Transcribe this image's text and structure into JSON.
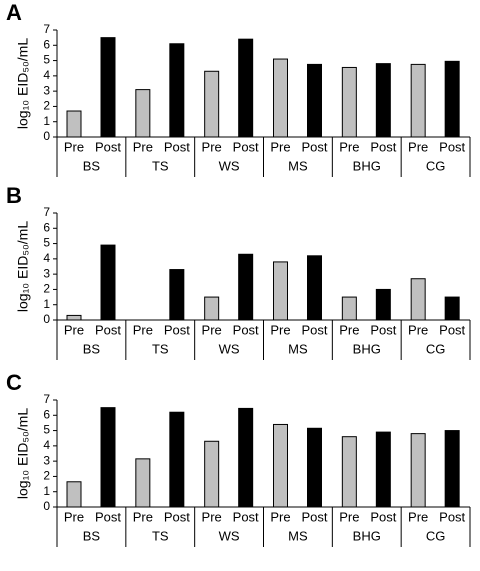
{
  "chart_data": [
    {
      "type": "bar",
      "panel": "A",
      "y_label": "log₁₀ EID₅₀/mL",
      "categories": [
        "BS",
        "TS",
        "WS",
        "MS",
        "BHG",
        "CG"
      ],
      "series": [
        {
          "name": "Pre",
          "color": "#c0c0c0",
          "values": [
            1.7,
            3.1,
            4.3,
            5.1,
            4.55,
            4.75
          ]
        },
        {
          "name": "Post",
          "color": "#000000",
          "values": [
            6.5,
            6.1,
            6.4,
            4.75,
            4.8,
            4.95
          ]
        }
      ],
      "ylim": [
        0,
        7
      ],
      "yticks": [
        0,
        1,
        2,
        3,
        4,
        5,
        6,
        7
      ],
      "grid": false
    },
    {
      "type": "bar",
      "panel": "B",
      "y_label": "log₁₀ EID₅₀/mL",
      "categories": [
        "BS",
        "TS",
        "WS",
        "MS",
        "BHG",
        "CG"
      ],
      "series": [
        {
          "name": "Pre",
          "color": "#c0c0c0",
          "values": [
            0.3,
            0,
            1.5,
            3.8,
            1.5,
            2.7
          ]
        },
        {
          "name": "Post",
          "color": "#000000",
          "values": [
            4.9,
            3.3,
            4.3,
            4.2,
            2.0,
            1.5
          ]
        }
      ],
      "ylim": [
        0,
        7
      ],
      "yticks": [
        0,
        1,
        2,
        3,
        4,
        5,
        6,
        7
      ],
      "grid": false
    },
    {
      "type": "bar",
      "panel": "C",
      "y_label": "log₁₀ EID₅₀/mL",
      "categories": [
        "BS",
        "TS",
        "WS",
        "MS",
        "BHG",
        "CG"
      ],
      "series": [
        {
          "name": "Pre",
          "color": "#c0c0c0",
          "values": [
            1.65,
            3.15,
            4.3,
            5.4,
            4.6,
            4.8
          ]
        },
        {
          "name": "Post",
          "color": "#000000",
          "values": [
            6.5,
            6.2,
            6.45,
            5.15,
            4.9,
            5.0
          ]
        }
      ],
      "ylim": [
        0,
        7
      ],
      "yticks": [
        0,
        1,
        2,
        3,
        4,
        5,
        6,
        7
      ],
      "grid": false
    }
  ]
}
